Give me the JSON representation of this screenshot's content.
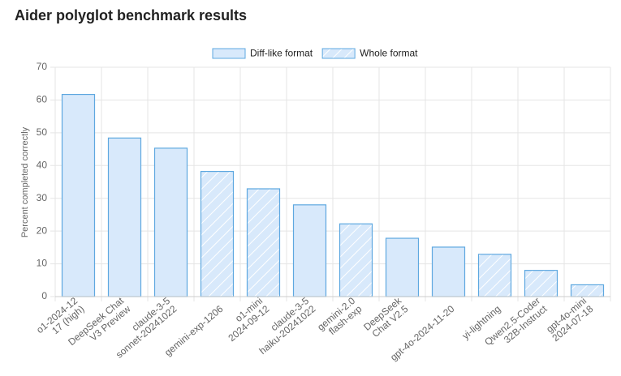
{
  "chart_data": {
    "type": "bar",
    "title": "Aider polyglot benchmark results",
    "ylabel": "Percent completed correctly",
    "categories": [
      [
        "o1-2024-12",
        "17 (high)"
      ],
      [
        "DeepSeek Chat",
        "V3 Preview"
      ],
      [
        "claude-3-5",
        "sonnet-20241022"
      ],
      [
        "gemini-exp-1206"
      ],
      [
        "o1-mini",
        "2024-09-12"
      ],
      [
        "claude-3-5",
        "haiku-20241022"
      ],
      [
        "gemini-2.0",
        "flash-exp"
      ],
      [
        "DeepSeek",
        "Chat V2.5"
      ],
      [
        "gpt-4o-2024-11-20"
      ],
      [
        "yi-lightning"
      ],
      [
        "Qwen2.5-Coder",
        "32B-Instruct"
      ],
      [
        "gpt-4o-mini",
        "2024-07-18"
      ]
    ],
    "series": [
      {
        "name": "Diff-like format",
        "color": "#5ea8e0",
        "hatch": false,
        "values": [
          61.7,
          48.4,
          45.3,
          null,
          null,
          28.0,
          null,
          17.8,
          15.1,
          null,
          null,
          null
        ]
      },
      {
        "name": "Whole format",
        "color": "#5ea8e0",
        "hatch": true,
        "values": [
          null,
          null,
          null,
          38.2,
          32.9,
          null,
          22.2,
          null,
          null,
          12.9,
          8.0,
          3.6
        ]
      }
    ],
    "ylim": [
      0,
      70
    ],
    "yticks": [
      0,
      10,
      20,
      30,
      40,
      50,
      60,
      70
    ],
    "grid": true,
    "legend": "top"
  }
}
